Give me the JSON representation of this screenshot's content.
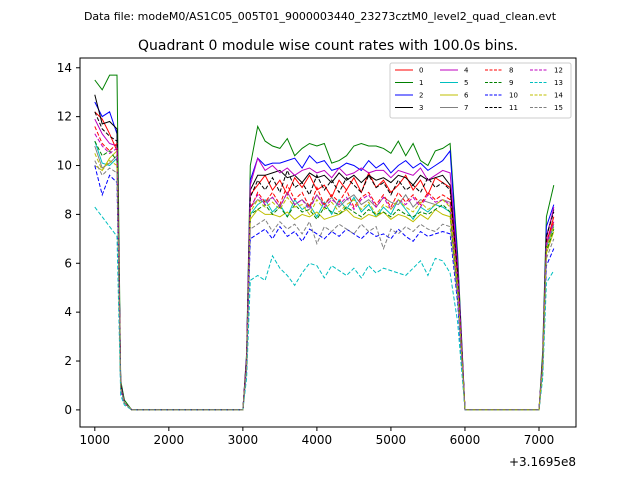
{
  "header": {
    "data_file": "Data file: modeM0/AS1C05_005T01_9000003440_23273cztM0_level2_quad_clean.evt"
  },
  "chart_data": {
    "type": "line",
    "title": "Quadrant 0 module wise count rates with 100.0s bins.",
    "xlabel": "",
    "ylabel": "",
    "x_offset_label": "+3.1695e8",
    "xlim": [
      800,
      7500
    ],
    "ylim": [
      -0.7,
      14.4
    ],
    "xticks": [
      1000,
      2000,
      3000,
      4000,
      5000,
      6000,
      7000
    ],
    "xtick_labels": [
      "1000",
      "2000",
      "3000",
      "4000",
      "5000",
      "6000",
      "7000"
    ],
    "yticks": [
      0,
      2,
      4,
      6,
      8,
      10,
      12,
      14
    ],
    "ytick_labels": [
      "0",
      "2",
      "4",
      "6",
      "8",
      "10",
      "12",
      "14"
    ],
    "grid": false,
    "legend_placement": "top-right",
    "legend_columns": 4,
    "x": [
      1000,
      1100,
      1200,
      1300,
      1350,
      1400,
      1500,
      1600,
      1700,
      1800,
      1900,
      2000,
      2100,
      2200,
      2300,
      2400,
      2500,
      2600,
      2700,
      2800,
      2900,
      3000,
      3050,
      3100,
      3200,
      3300,
      3400,
      3500,
      3600,
      3700,
      3800,
      3900,
      4000,
      4100,
      4200,
      4300,
      4400,
      4500,
      4600,
      4700,
      4800,
      4900,
      5000,
      5100,
      5200,
      5300,
      5400,
      5500,
      5600,
      5700,
      5800,
      5900,
      6000,
      6100,
      6200,
      6300,
      6400,
      6500,
      6600,
      6700,
      6800,
      6900,
      7000,
      7050,
      7100,
      7200
    ],
    "series": [
      {
        "name": "0",
        "color": "#ff0000",
        "dash": "solid",
        "values": [
          12.2,
          11.9,
          11.3,
          10.6,
          1.0,
          0.3,
          0,
          0,
          0,
          0,
          0,
          0,
          0,
          0,
          0,
          0,
          0,
          0,
          0,
          0,
          0,
          0,
          2.0,
          8.8,
          9.2,
          9.6,
          9.0,
          9.4,
          8.8,
          9.5,
          9.1,
          9.6,
          9.0,
          9.2,
          8.7,
          9.4,
          9.0,
          9.5,
          8.9,
          9.7,
          9.1,
          9.4,
          8.9,
          9.2,
          9.6,
          9.0,
          9.4,
          8.8,
          9.5,
          9.3,
          9.1,
          5.5,
          0,
          0,
          0,
          0,
          0,
          0,
          0,
          0,
          0,
          0,
          0,
          2.0,
          6.8,
          7.9
        ]
      },
      {
        "name": "1",
        "color": "#008000",
        "dash": "solid",
        "values": [
          13.5,
          13.1,
          13.7,
          13.7,
          1.2,
          0.4,
          0,
          0,
          0,
          0,
          0,
          0,
          0,
          0,
          0,
          0,
          0,
          0,
          0,
          0,
          0,
          0,
          2.3,
          10.0,
          11.6,
          11.0,
          10.8,
          10.7,
          11.1,
          10.4,
          10.7,
          10.9,
          10.8,
          10.9,
          10.1,
          10.2,
          10.4,
          10.8,
          10.9,
          10.8,
          10.8,
          10.7,
          10.5,
          11.0,
          10.4,
          10.9,
          10.2,
          10.0,
          10.6,
          10.7,
          10.9,
          6.4,
          0,
          0,
          0,
          0,
          0,
          0,
          0,
          0,
          0,
          0,
          0,
          2.4,
          7.9,
          9.2
        ]
      },
      {
        "name": "2",
        "color": "#0000ff",
        "dash": "solid",
        "values": [
          12.6,
          12.0,
          12.2,
          11.3,
          1.1,
          0.3,
          0,
          0,
          0,
          0,
          0,
          0,
          0,
          0,
          0,
          0,
          0,
          0,
          0,
          0,
          0,
          0,
          2.2,
          9.4,
          10.3,
          10.0,
          10.1,
          10.1,
          10.2,
          10.3,
          9.9,
          10.4,
          10.1,
          10.2,
          9.8,
          9.9,
          10.1,
          10.0,
          9.8,
          10.2,
          9.9,
          10.1,
          9.7,
          10.0,
          10.2,
          9.9,
          10.1,
          9.8,
          10.0,
          10.2,
          10.6,
          6.1,
          0,
          0,
          0,
          0,
          0,
          0,
          0,
          0,
          0,
          0,
          0,
          2.1,
          7.5,
          8.4
        ]
      },
      {
        "name": "3",
        "color": "#000000",
        "dash": "solid",
        "values": [
          12.9,
          11.7,
          11.8,
          11.5,
          1.1,
          0.3,
          0,
          0,
          0,
          0,
          0,
          0,
          0,
          0,
          0,
          0,
          0,
          0,
          0,
          0,
          0,
          0,
          2.1,
          9.0,
          9.6,
          9.6,
          9.7,
          9.8,
          9.5,
          9.6,
          9.3,
          9.7,
          9.5,
          9.6,
          9.3,
          9.7,
          9.4,
          9.6,
          9.3,
          9.6,
          9.4,
          9.5,
          9.3,
          9.6,
          9.5,
          9.2,
          9.6,
          9.4,
          9.5,
          9.6,
          9.2,
          5.8,
          0,
          0,
          0,
          0,
          0,
          0,
          0,
          0,
          0,
          0,
          0,
          2.0,
          7.1,
          8.2
        ]
      },
      {
        "name": "4",
        "color": "#bf00bf",
        "dash": "solid",
        "values": [
          11.9,
          11.3,
          10.9,
          10.8,
          1.0,
          0.3,
          0,
          0,
          0,
          0,
          0,
          0,
          0,
          0,
          0,
          0,
          0,
          0,
          0,
          0,
          0,
          0,
          2.1,
          9.2,
          10.3,
          9.8,
          10.0,
          9.7,
          9.9,
          9.6,
          9.8,
          9.9,
          9.7,
          9.8,
          9.5,
          9.9,
          9.6,
          9.7,
          9.9,
          9.7,
          9.8,
          9.8,
          9.5,
          9.8,
          9.7,
          9.6,
          9.9,
          9.4,
          9.6,
          9.8,
          9.7,
          5.9,
          0,
          0,
          0,
          0,
          0,
          0,
          0,
          0,
          0,
          0,
          0,
          2.0,
          7.0,
          8.3
        ]
      },
      {
        "name": "5",
        "color": "#00bfbf",
        "dash": "solid",
        "values": [
          11.0,
          10.1,
          10.0,
          10.3,
          0.9,
          0.3,
          0,
          0,
          0,
          0,
          0,
          0,
          0,
          0,
          0,
          0,
          0,
          0,
          0,
          0,
          0,
          0,
          1.9,
          8.0,
          8.4,
          8.6,
          8.1,
          8.4,
          7.9,
          8.6,
          8.2,
          8.4,
          7.9,
          8.5,
          8.0,
          8.6,
          8.2,
          8.7,
          8.1,
          8.4,
          7.9,
          8.3,
          8.0,
          8.6,
          8.2,
          7.8,
          8.3,
          8.1,
          8.4,
          8.3,
          8.1,
          4.9,
          0,
          0,
          0,
          0,
          0,
          0,
          0,
          0,
          0,
          0,
          0,
          1.8,
          6.6,
          7.5
        ]
      },
      {
        "name": "6",
        "color": "#bfbf00",
        "dash": "solid",
        "values": [
          10.0,
          9.8,
          10.3,
          10.6,
          0.9,
          0.3,
          0,
          0,
          0,
          0,
          0,
          0,
          0,
          0,
          0,
          0,
          0,
          0,
          0,
          0,
          0,
          0,
          1.8,
          7.8,
          8.2,
          8.0,
          8.0,
          7.9,
          8.1,
          7.8,
          8.0,
          7.9,
          8.1,
          7.8,
          7.9,
          8.0,
          8.2,
          7.9,
          7.8,
          8.0,
          7.9,
          8.1,
          7.8,
          8.0,
          7.9,
          7.7,
          8.0,
          7.8,
          8.2,
          8.0,
          7.9,
          4.8,
          0,
          0,
          0,
          0,
          0,
          0,
          0,
          0,
          0,
          0,
          0,
          1.7,
          6.4,
          7.3
        ]
      },
      {
        "name": "7",
        "color": "#808080",
        "dash": "solid",
        "values": [
          10.8,
          9.9,
          10.1,
          10.4,
          0.9,
          0.3,
          0,
          0,
          0,
          0,
          0,
          0,
          0,
          0,
          0,
          0,
          0,
          0,
          0,
          0,
          0,
          0,
          1.8,
          8.3,
          8.6,
          8.5,
          8.7,
          8.3,
          8.9,
          8.4,
          8.6,
          8.3,
          8.8,
          8.4,
          8.7,
          8.3,
          8.6,
          8.8,
          8.4,
          8.6,
          8.3,
          8.7,
          8.5,
          8.4,
          8.8,
          8.3,
          8.6,
          8.5,
          8.4,
          8.6,
          8.5,
          5.1,
          0,
          0,
          0,
          0,
          0,
          0,
          0,
          0,
          0,
          0,
          0,
          1.8,
          6.7,
          7.6
        ]
      },
      {
        "name": "8",
        "color": "#ff0000",
        "dash": "dashed",
        "values": [
          11.6,
          10.9,
          10.6,
          10.9,
          1.0,
          0.3,
          0,
          0,
          0,
          0,
          0,
          0,
          0,
          0,
          0,
          0,
          0,
          0,
          0,
          0,
          0,
          0,
          2.0,
          8.2,
          8.9,
          8.5,
          8.9,
          8.4,
          9.2,
          8.6,
          8.9,
          8.3,
          9.1,
          8.4,
          8.8,
          8.5,
          9.0,
          8.3,
          8.7,
          8.9,
          8.4,
          8.8,
          8.3,
          8.9,
          8.5,
          8.8,
          8.4,
          8.9,
          8.6,
          8.8,
          8.6,
          5.3,
          0,
          0,
          0,
          0,
          0,
          0,
          0,
          0,
          0,
          0,
          0,
          1.9,
          6.9,
          7.7
        ]
      },
      {
        "name": "9",
        "color": "#008000",
        "dash": "dashed",
        "values": [
          11.0,
          10.4,
          10.6,
          10.2,
          0.9,
          0.3,
          0,
          0,
          0,
          0,
          0,
          0,
          0,
          0,
          0,
          0,
          0,
          0,
          0,
          0,
          0,
          0,
          1.9,
          8.0,
          8.2,
          8.4,
          8.0,
          8.3,
          7.9,
          8.4,
          8.1,
          8.2,
          7.8,
          8.3,
          8.1,
          8.0,
          8.3,
          8.1,
          7.9,
          8.2,
          8.0,
          8.1,
          7.9,
          8.2,
          8.0,
          7.9,
          8.1,
          8.0,
          8.2,
          8.4,
          8.1,
          4.9,
          0,
          0,
          0,
          0,
          0,
          0,
          0,
          0,
          0,
          0,
          0,
          1.8,
          6.5,
          7.4
        ]
      },
      {
        "name": "10",
        "color": "#0000ff",
        "dash": "dashed",
        "values": [
          10.0,
          8.8,
          9.6,
          9.3,
          0.8,
          0.3,
          0,
          0,
          0,
          0,
          0,
          0,
          0,
          0,
          0,
          0,
          0,
          0,
          0,
          0,
          0,
          0,
          1.7,
          7.0,
          7.2,
          7.4,
          7.0,
          7.5,
          7.1,
          7.3,
          6.9,
          7.4,
          7.2,
          7.0,
          7.3,
          7.1,
          7.4,
          7.2,
          7.0,
          7.3,
          7.1,
          7.2,
          7.0,
          7.4,
          7.1,
          6.9,
          7.3,
          7.1,
          7.2,
          7.3,
          7.2,
          4.4,
          0,
          0,
          0,
          0,
          0,
          0,
          0,
          0,
          0,
          0,
          0,
          1.6,
          5.9,
          6.6
        ]
      },
      {
        "name": "11",
        "color": "#000000",
        "dash": "dashed",
        "values": [
          12.2,
          11.5,
          11.2,
          11.0,
          1.0,
          0.3,
          0,
          0,
          0,
          0,
          0,
          0,
          0,
          0,
          0,
          0,
          0,
          0,
          0,
          0,
          0,
          0,
          2.0,
          8.7,
          9.4,
          9.0,
          9.5,
          8.9,
          9.8,
          9.1,
          9.3,
          8.8,
          9.6,
          9.0,
          9.4,
          8.9,
          9.5,
          9.2,
          8.9,
          9.6,
          9.1,
          9.3,
          8.8,
          9.4,
          9.0,
          9.2,
          8.9,
          9.5,
          9.1,
          9.3,
          9.0,
          5.6,
          0,
          0,
          0,
          0,
          0,
          0,
          0,
          0,
          0,
          0,
          0,
          2.0,
          7.1,
          8.1
        ]
      },
      {
        "name": "12",
        "color": "#bf00bf",
        "dash": "dashed",
        "values": [
          11.3,
          10.8,
          10.5,
          10.7,
          0.9,
          0.3,
          0,
          0,
          0,
          0,
          0,
          0,
          0,
          0,
          0,
          0,
          0,
          0,
          0,
          0,
          0,
          0,
          1.9,
          8.3,
          8.8,
          8.4,
          8.7,
          8.3,
          8.9,
          8.4,
          8.6,
          8.2,
          8.8,
          8.3,
          8.6,
          8.4,
          8.7,
          8.2,
          8.6,
          8.8,
          8.3,
          8.7,
          8.2,
          8.6,
          8.4,
          8.7,
          8.3,
          8.8,
          8.5,
          8.6,
          8.4,
          5.2,
          0,
          0,
          0,
          0,
          0,
          0,
          0,
          0,
          0,
          0,
          0,
          1.9,
          6.8,
          7.7
        ]
      },
      {
        "name": "13",
        "color": "#00bfbf",
        "dash": "dashed",
        "values": [
          8.3,
          7.9,
          7.5,
          7.1,
          0.6,
          0.2,
          0,
          0,
          0,
          0,
          0,
          0,
          0,
          0,
          0,
          0,
          0,
          0,
          0,
          0,
          0,
          0,
          1.3,
          5.3,
          5.5,
          5.3,
          6.3,
          5.8,
          5.5,
          5.1,
          5.6,
          6.0,
          5.9,
          5.4,
          5.9,
          5.7,
          5.5,
          5.8,
          5.4,
          5.9,
          5.6,
          5.8,
          5.7,
          5.6,
          5.5,
          5.8,
          6.1,
          5.5,
          6.2,
          6.1,
          5.6,
          3.6,
          0,
          0,
          0,
          0,
          0,
          0,
          0,
          0,
          0,
          0,
          0,
          1.3,
          5.2,
          5.7
        ]
      },
      {
        "name": "14",
        "color": "#bfbf00",
        "dash": "dashed",
        "values": [
          10.5,
          9.8,
          10.2,
          10.0,
          0.9,
          0.3,
          0,
          0,
          0,
          0,
          0,
          0,
          0,
          0,
          0,
          0,
          0,
          0,
          0,
          0,
          0,
          0,
          1.8,
          8.1,
          8.6,
          8.3,
          8.5,
          8.2,
          8.7,
          8.3,
          8.4,
          8.0,
          8.6,
          8.2,
          8.5,
          8.1,
          8.4,
          8.6,
          8.2,
          8.5,
          8.0,
          8.4,
          8.2,
          8.6,
          8.3,
          8.1,
          8.5,
          8.2,
          8.4,
          8.6,
          8.3,
          5.1,
          0,
          0,
          0,
          0,
          0,
          0,
          0,
          0,
          0,
          0,
          0,
          1.8,
          6.6,
          7.5
        ]
      },
      {
        "name": "15",
        "color": "#808080",
        "dash": "dashed",
        "values": [
          10.2,
          9.6,
          9.9,
          9.7,
          0.9,
          0.3,
          0,
          0,
          0,
          0,
          0,
          0,
          0,
          0,
          0,
          0,
          0,
          0,
          0,
          0,
          0,
          0,
          1.7,
          7.4,
          7.6,
          7.8,
          7.3,
          7.7,
          7.4,
          7.6,
          7.2,
          7.7,
          6.8,
          7.5,
          7.3,
          7.6,
          7.4,
          7.2,
          7.6,
          7.3,
          7.5,
          6.6,
          7.4,
          7.2,
          7.5,
          7.3,
          7.6,
          7.4,
          7.3,
          7.6,
          7.5,
          4.6,
          0,
          0,
          0,
          0,
          0,
          0,
          0,
          0,
          0,
          0,
          0,
          1.7,
          6.2,
          7.0
        ]
      }
    ]
  }
}
